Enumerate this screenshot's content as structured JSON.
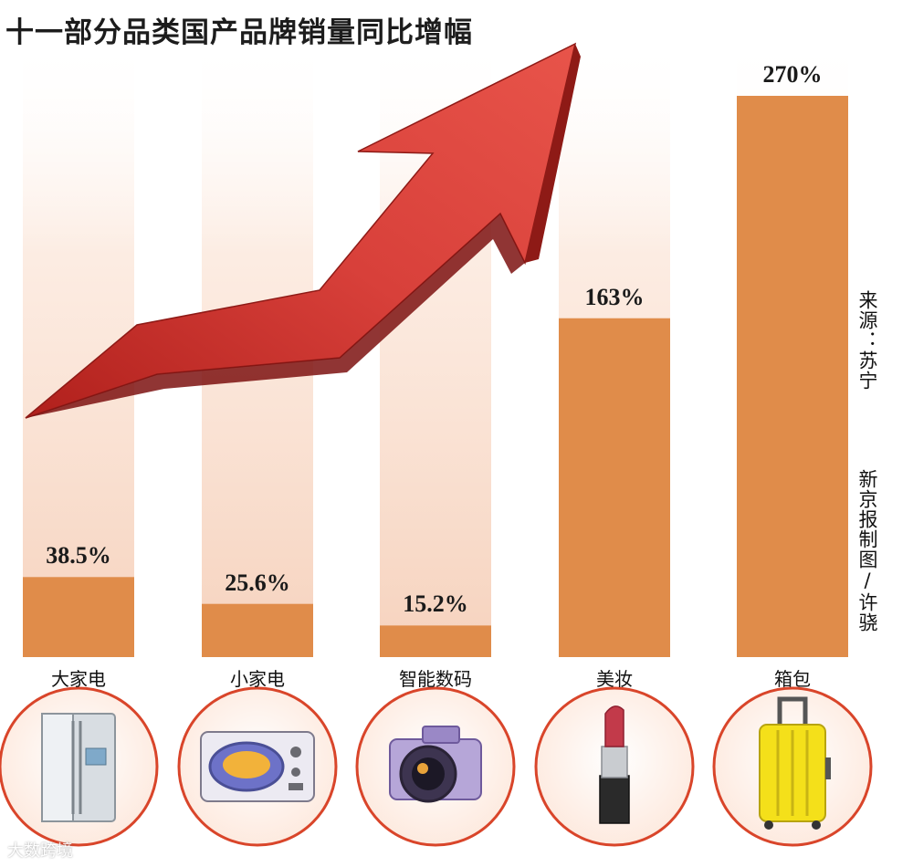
{
  "chart_data": {
    "type": "bar",
    "title": "十一部分品类国产品牌销量同比增幅",
    "categories": [
      "大家电",
      "小家电",
      "智能数码",
      "美妆",
      "箱包"
    ],
    "values": [
      38.5,
      25.6,
      15.2,
      163,
      270
    ],
    "value_labels": [
      "38.5%",
      "25.6%",
      "15.2%",
      "163%",
      "270%"
    ],
    "ylim": [
      0,
      270
    ],
    "unit": "%",
    "grid": false,
    "bar_color": "#e08c4a",
    "icons": [
      "refrigerator-icon",
      "microwave-icon",
      "camera-icon",
      "lipstick-icon",
      "suitcase-icon"
    ]
  },
  "source": {
    "line1": "来源：苏宁",
    "line2": "新京报制图/许骁"
  },
  "watermark": "大数跨境",
  "colors": {
    "bar": "#e08c4a",
    "arrow": "#c8302c",
    "circle_border": "#d9452a"
  }
}
